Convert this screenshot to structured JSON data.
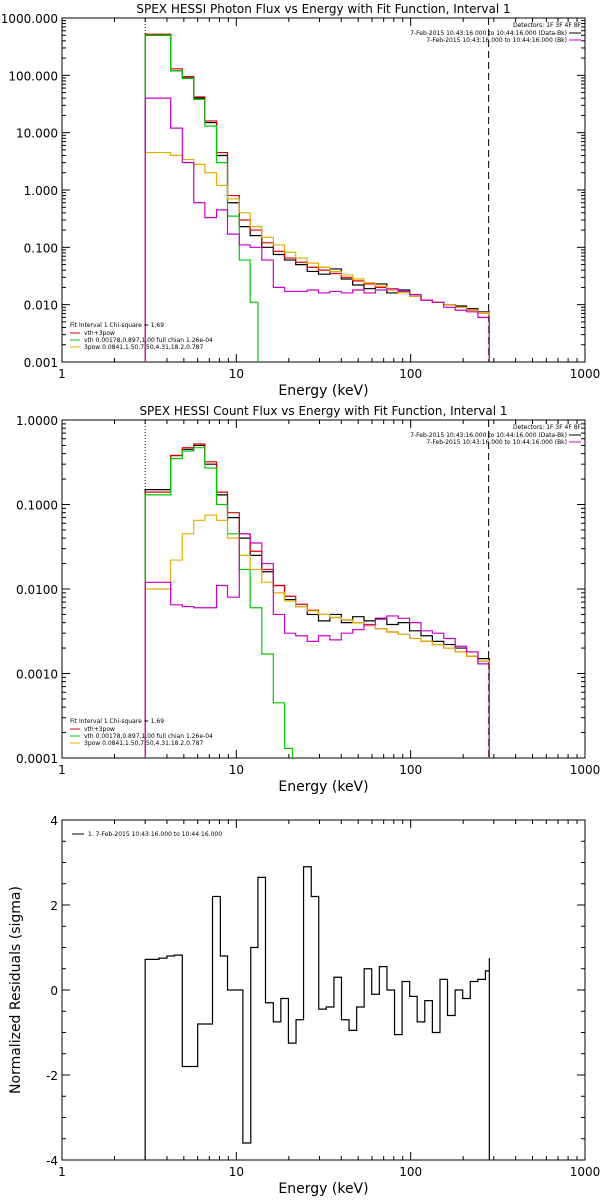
{
  "chart_data": [
    {
      "type": "line",
      "title": "SPEX HESSI Photon Flux vs Energy with Fit Function, Interval 1",
      "xlabel": "Energy (keV)",
      "ylabel": "",
      "xscale": "log",
      "yscale": "log",
      "xlim": [
        1,
        1000
      ],
      "ylim": [
        0.001,
        1000
      ],
      "xticks": [
        1,
        10,
        100,
        1000
      ],
      "xtick_labels": [
        "1",
        "10",
        "100",
        "1000"
      ],
      "yticks": [
        0.001,
        0.01,
        0.1,
        1,
        10,
        100,
        1000
      ],
      "ytick_labels": [
        "0.001",
        "0.010",
        "0.100",
        "1.000",
        "10.000",
        "100.000",
        "1000.000"
      ],
      "vlines": [
        {
          "x": 3,
          "style": "dotted",
          "color": "#000000"
        },
        {
          "x": 280,
          "style": "dashed",
          "color": "#000000"
        }
      ],
      "legend_topright": {
        "header": "Detectors: 1F 3F 4F 8F",
        "entries": [
          {
            "text": "7-Feb-2015 10:43:16.000 to 10:44:16.000 (Data-Bk)",
            "color": "#000000"
          },
          {
            "text": "7-Feb-2015 10:43:16.000 to 10:44:16.000 (Bk)",
            "color": "#cc00cc"
          }
        ]
      },
      "legend_bottomleft": {
        "header": "Fit Interval  1    Chi-square = 1.69",
        "entries": [
          {
            "text": "vth+3pow",
            "color": "#e00000"
          },
          {
            "text": "vth 0.00178,0.897,1.00  full chian 1.26e-04",
            "color": "#00cc00"
          },
          {
            "text": "3pow 0.0841,1.50,7.50,4.31,18.2,0.787",
            "color": "#e0b000"
          }
        ]
      },
      "series": [
        {
          "key": "data",
          "color": "#000000",
          "x": [
            3.0,
            3.6,
            4.2,
            4.9,
            5.7,
            6.6,
            7.7,
            8.9,
            10.4,
            12.0,
            14.0,
            16.3,
            18.9,
            21.9,
            25.5,
            29.6,
            34.4,
            40.0,
            46.5,
            54.0,
            62.8,
            73.0,
            84.8,
            98.6,
            114.6,
            133.2,
            154.8,
            180.0,
            209.2,
            243.2,
            282.6
          ],
          "y": [
            500,
            500,
            120,
            90,
            40,
            15,
            4.0,
            0.6,
            0.23,
            0.16,
            0.1,
            0.075,
            0.06,
            0.05,
            0.038,
            0.034,
            0.042,
            0.028,
            0.022,
            0.019,
            0.023,
            0.016,
            0.018,
            0.015,
            0.012,
            0.011,
            0.01,
            0.0095,
            0.0085,
            0.0075,
            0.006
          ]
        },
        {
          "key": "fit_total",
          "color": "#e00000",
          "x": [
            3.0,
            3.6,
            4.2,
            4.9,
            5.7,
            6.6,
            7.7,
            8.9,
            10.4,
            12.0,
            14.0,
            16.3,
            18.9,
            21.9,
            25.5,
            29.6,
            34.4,
            40.0,
            46.5,
            54.0,
            62.8,
            73.0,
            84.8,
            98.6,
            114.6,
            133.2,
            154.8,
            180.0,
            209.2,
            243.2,
            282.6
          ],
          "y": [
            520,
            520,
            130,
            95,
            42,
            16,
            4.5,
            0.8,
            0.3,
            0.2,
            0.12,
            0.085,
            0.065,
            0.055,
            0.045,
            0.04,
            0.035,
            0.03,
            0.026,
            0.023,
            0.02,
            0.018,
            0.016,
            0.014,
            0.012,
            0.011,
            0.01,
            0.009,
            0.008,
            0.0072,
            0.0065
          ]
        },
        {
          "key": "fit_vth",
          "color": "#00cc00",
          "x": [
            3.0,
            3.6,
            4.2,
            4.9,
            5.7,
            6.6,
            7.7,
            8.9,
            10.4,
            12.0,
            13.3
          ],
          "y": [
            500,
            500,
            120,
            88,
            38,
            13,
            3.0,
            0.35,
            0.06,
            0.011,
            0.0013
          ]
        },
        {
          "key": "fit_3pow",
          "color": "#e0b000",
          "x": [
            3.0,
            3.6,
            4.2,
            4.9,
            5.7,
            6.6,
            7.7,
            8.9,
            10.4,
            12.0,
            14.0,
            16.3,
            18.9,
            21.9,
            25.5,
            29.6,
            34.4,
            40.0,
            46.5,
            54.0,
            62.8,
            73.0,
            84.8,
            98.6,
            114.6,
            133.2,
            154.8,
            180.0,
            209.2,
            243.2,
            282.6
          ],
          "y": [
            4.5,
            4.5,
            4.0,
            3.4,
            2.8,
            2.0,
            1.2,
            0.7,
            0.4,
            0.23,
            0.15,
            0.11,
            0.082,
            0.065,
            0.053,
            0.045,
            0.038,
            0.033,
            0.028,
            0.024,
            0.021,
            0.018,
            0.016,
            0.014,
            0.012,
            0.011,
            0.01,
            0.009,
            0.008,
            0.0073,
            0.0066
          ]
        },
        {
          "key": "background",
          "color": "#cc00cc",
          "x": [
            3.0,
            3.6,
            4.2,
            4.9,
            5.7,
            6.6,
            7.7,
            8.9,
            10.4,
            12.0,
            14.0,
            16.3,
            18.9,
            21.9,
            25.5,
            29.6,
            34.4,
            40.0,
            46.5,
            54.0,
            62.8,
            73.0,
            84.8,
            98.6,
            114.6,
            133.2,
            154.8,
            180.0,
            209.2,
            243.2,
            282.6
          ],
          "y": [
            40,
            40,
            12,
            3.0,
            0.6,
            0.33,
            0.45,
            0.17,
            0.11,
            0.1,
            0.06,
            0.02,
            0.017,
            0.017,
            0.018,
            0.016,
            0.017,
            0.016,
            0.018,
            0.016,
            0.018,
            0.019,
            0.017,
            0.015,
            0.012,
            0.011,
            0.009,
            0.008,
            0.0075,
            0.006,
            0.005
          ]
        }
      ]
    },
    {
      "type": "line",
      "title": "SPEX HESSI Count Flux vs Energy with Fit Function, Interval 1",
      "xlabel": "Energy (keV)",
      "ylabel": "",
      "xscale": "log",
      "yscale": "log",
      "xlim": [
        1,
        1000
      ],
      "ylim": [
        0.0001,
        1
      ],
      "xticks": [
        1,
        10,
        100,
        1000
      ],
      "xtick_labels": [
        "1",
        "10",
        "100",
        "1000"
      ],
      "yticks": [
        0.0001,
        0.001,
        0.01,
        0.1,
        1
      ],
      "ytick_labels": [
        "0.0001",
        "0.0010",
        "0.0100",
        "0.1000",
        "1.0000"
      ],
      "vlines": [
        {
          "x": 3,
          "style": "dotted",
          "color": "#000000"
        },
        {
          "x": 280,
          "style": "dashed",
          "color": "#000000"
        }
      ],
      "legend_topright": {
        "header": "Detectors: 1F 3F 4F 8F",
        "entries": [
          {
            "text": "7-Feb-2015 10:43:16.000 to 10:44:16.000 (Data-Bk)",
            "color": "#000000"
          },
          {
            "text": "7-Feb-2015 10:43:16.000 to 10:44:16.000 (Bk)",
            "color": "#cc00cc"
          }
        ]
      },
      "legend_bottomleft": {
        "header": "Fit Interval  1    Chi-square = 1.69",
        "entries": [
          {
            "text": "vth+3pow",
            "color": "#e00000"
          },
          {
            "text": "vth 0.00178,0.897,1.00  full chian 1.26e-04",
            "color": "#00cc00"
          },
          {
            "text": "3pow 0.0841,1.50,7.50,4.31,18.2,0.787",
            "color": "#e0b000"
          }
        ]
      },
      "series": [
        {
          "key": "data",
          "color": "#000000",
          "x": [
            3.0,
            3.6,
            4.2,
            4.9,
            5.7,
            6.6,
            7.7,
            8.9,
            10.4,
            12.0,
            14.0,
            16.3,
            18.9,
            21.9,
            25.5,
            29.6,
            34.4,
            40.0,
            46.5,
            54.0,
            62.8,
            73.0,
            84.8,
            98.6,
            114.6,
            133.2,
            154.8,
            180.0,
            209.2,
            243.2,
            282.6
          ],
          "y": [
            0.15,
            0.15,
            0.38,
            0.45,
            0.5,
            0.3,
            0.13,
            0.07,
            0.04,
            0.025,
            0.016,
            0.011,
            0.0075,
            0.0062,
            0.005,
            0.0042,
            0.005,
            0.004,
            0.0047,
            0.0042,
            0.0045,
            0.0038,
            0.004,
            0.0032,
            0.0028,
            0.0024,
            0.0022,
            0.002,
            0.0018,
            0.0015,
            0.0013
          ]
        },
        {
          "key": "fit_total",
          "color": "#e00000",
          "x": [
            3.0,
            3.6,
            4.2,
            4.9,
            5.7,
            6.6,
            7.7,
            8.9,
            10.4,
            12.0,
            14.0,
            16.3,
            18.9,
            21.9,
            25.5,
            29.6,
            34.4,
            40.0,
            46.5,
            54.0,
            62.8,
            73.0,
            84.8,
            98.6,
            114.6,
            133.2,
            154.8,
            180.0,
            209.2,
            243.2,
            282.6
          ],
          "y": [
            0.14,
            0.14,
            0.38,
            0.47,
            0.52,
            0.32,
            0.14,
            0.08,
            0.045,
            0.028,
            0.017,
            0.011,
            0.0082,
            0.0066,
            0.0056,
            0.005,
            0.0046,
            0.0043,
            0.004,
            0.0037,
            0.0034,
            0.0031,
            0.0029,
            0.0026,
            0.0024,
            0.0022,
            0.002,
            0.0018,
            0.0016,
            0.0014,
            0.0012
          ]
        },
        {
          "key": "fit_vth",
          "color": "#00cc00",
          "x": [
            3.0,
            3.6,
            4.2,
            4.9,
            5.7,
            6.6,
            7.7,
            8.9,
            10.4,
            12.0,
            14.0,
            16.3,
            18.9,
            21.0
          ],
          "y": [
            0.13,
            0.13,
            0.35,
            0.43,
            0.47,
            0.27,
            0.1,
            0.045,
            0.017,
            0.006,
            0.0017,
            0.00045,
            0.00013,
            0.0001
          ]
        },
        {
          "key": "fit_3pow",
          "color": "#e0b000",
          "x": [
            3.0,
            3.6,
            4.2,
            4.9,
            5.7,
            6.6,
            7.7,
            8.9,
            10.4,
            12.0,
            14.0,
            16.3,
            18.9,
            21.9,
            25.5,
            29.6,
            34.4,
            40.0,
            46.5,
            54.0,
            62.8,
            73.0,
            84.8,
            98.6,
            114.6,
            133.2,
            154.8,
            180.0,
            209.2,
            243.2,
            282.6
          ],
          "y": [
            0.01,
            0.01,
            0.022,
            0.045,
            0.065,
            0.075,
            0.065,
            0.04,
            0.025,
            0.017,
            0.012,
            0.009,
            0.0072,
            0.0062,
            0.0055,
            0.005,
            0.0046,
            0.0043,
            0.004,
            0.0037,
            0.0034,
            0.0031,
            0.0029,
            0.0026,
            0.0024,
            0.0022,
            0.002,
            0.0018,
            0.0016,
            0.0014,
            0.0012
          ]
        },
        {
          "key": "background",
          "color": "#cc00cc",
          "x": [
            3.0,
            3.6,
            4.2,
            4.9,
            5.7,
            6.6,
            7.7,
            8.9,
            10.4,
            12.0,
            14.0,
            16.3,
            18.9,
            21.9,
            25.5,
            29.6,
            34.4,
            40.0,
            46.5,
            54.0,
            62.8,
            73.0,
            84.8,
            98.6,
            114.6,
            133.2,
            154.8,
            180.0,
            209.2,
            243.2,
            282.6
          ],
          "y": [
            0.012,
            0.012,
            0.0065,
            0.0062,
            0.006,
            0.006,
            0.011,
            0.008,
            0.045,
            0.035,
            0.02,
            0.005,
            0.003,
            0.0028,
            0.0024,
            0.0028,
            0.0025,
            0.003,
            0.0033,
            0.0038,
            0.0044,
            0.0048,
            0.0045,
            0.004,
            0.0032,
            0.003,
            0.0026,
            0.0021,
            0.0018,
            0.0013,
            0.001
          ]
        }
      ]
    },
    {
      "type": "line",
      "title": "",
      "xlabel": "Energy (keV)",
      "ylabel": "Normalized Residuals (sigma)",
      "xscale": "log",
      "yscale": "linear",
      "xlim": [
        1,
        1000
      ],
      "ylim": [
        -4,
        4
      ],
      "xticks": [
        1,
        10,
        100,
        1000
      ],
      "xtick_labels": [
        "1",
        "10",
        "100",
        "1000"
      ],
      "yticks": [
        -4,
        -2,
        0,
        2,
        4
      ],
      "ytick_labels": [
        "-4",
        "-2",
        "0",
        "2",
        "4"
      ],
      "legend": {
        "entries": [
          {
            "text": "1.  7-Feb-2015 10:43:16.000 to 10:44:16.000",
            "color": "#000000"
          }
        ]
      },
      "series": [
        {
          "key": "residuals",
          "color": "#000000",
          "x": [
            3.0,
            3.3,
            3.6,
            4.0,
            4.4,
            4.9,
            5.4,
            6.0,
            6.6,
            7.3,
            8.1,
            8.9,
            9.9,
            10.9,
            12.1,
            13.3,
            14.7,
            16.3,
            18.0,
            19.9,
            22.0,
            24.3,
            26.9,
            29.7,
            32.8,
            36.3,
            40.1,
            44.3,
            49.0,
            54.1,
            59.8,
            66.1,
            73.1,
            80.8,
            89.3,
            98.7,
            109.0,
            120.5,
            133.2,
            147.3,
            162.7,
            179.9,
            198.8,
            219.7,
            242.8,
            268.4,
            282.6
          ],
          "y": [
            0.72,
            0.72,
            0.75,
            0.8,
            0.82,
            -1.8,
            -1.8,
            -0.8,
            -0.8,
            2.2,
            0.8,
            0.0,
            0.0,
            -3.6,
            1.0,
            2.65,
            -0.3,
            -0.75,
            -0.2,
            -1.25,
            -0.7,
            2.9,
            2.2,
            -0.45,
            -0.4,
            0.3,
            -0.7,
            -0.95,
            -0.4,
            0.5,
            -0.1,
            0.55,
            0.0,
            -1.05,
            0.2,
            -0.15,
            -0.75,
            -0.25,
            -1.0,
            0.25,
            -0.6,
            0.0,
            -0.2,
            0.2,
            0.25,
            0.45,
            0.75
          ]
        }
      ]
    }
  ]
}
